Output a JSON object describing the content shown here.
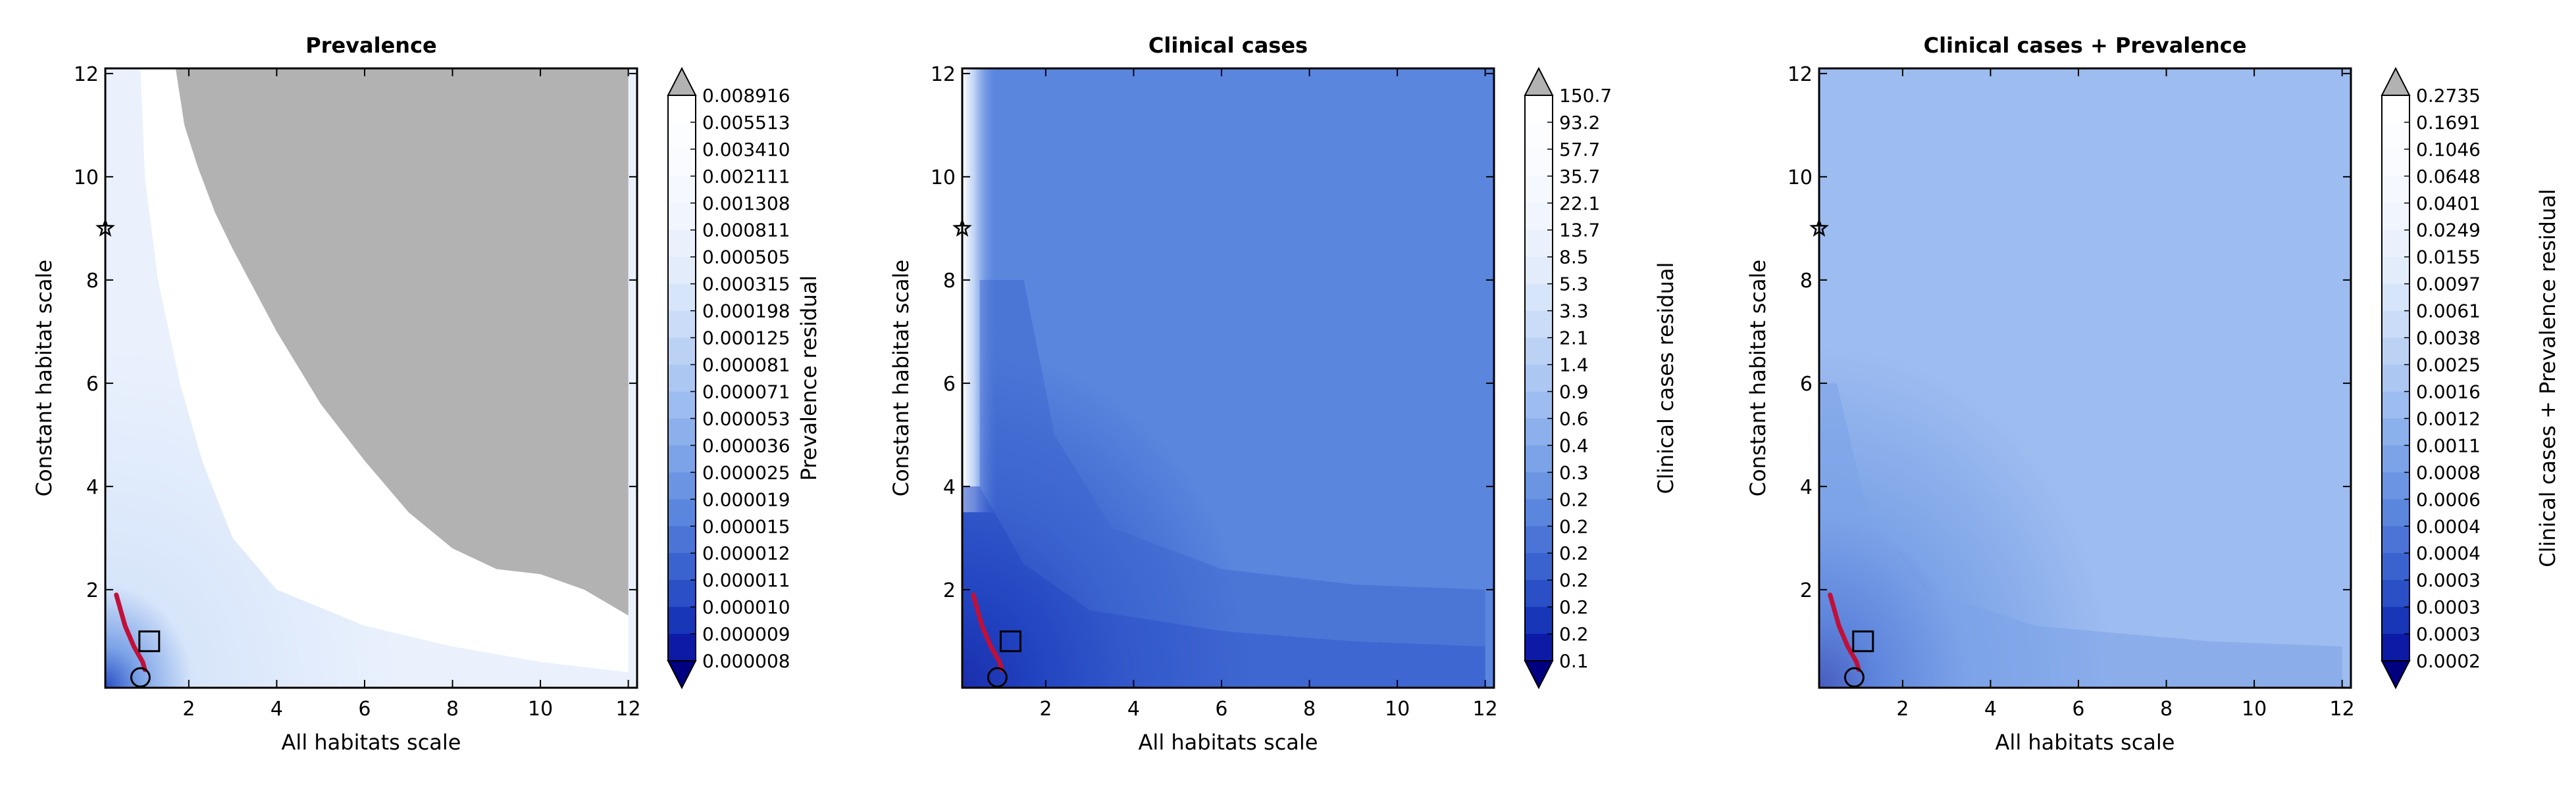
{
  "chart_data": [
    {
      "type": "heatmap",
      "title": "Prevalence",
      "xlabel": "All habitats scale",
      "ylabel": "Constant habitat scale",
      "xlim": [
        0.1,
        12.2
      ],
      "ylim": [
        0.1,
        12.1
      ],
      "xticks": [
        2,
        4,
        6,
        8,
        10,
        12
      ],
      "yticks": [
        2,
        4,
        6,
        8,
        10,
        12
      ],
      "colorbar": {
        "label": "Prevalence residual",
        "levels": [
          "0.008916",
          "0.005513",
          "0.003410",
          "0.002111",
          "0.001308",
          "0.000811",
          "0.000505",
          "0.000315",
          "0.000198",
          "0.000125",
          "0.000081",
          "0.000071",
          "0.000053",
          "0.000036",
          "0.000025",
          "0.000019",
          "0.000015",
          "0.000012",
          "0.000011",
          "0.000010",
          "0.000009",
          "0.000008"
        ]
      },
      "markers": [
        {
          "shape": "square",
          "x": 1.1,
          "y": 1.0
        },
        {
          "shape": "circle",
          "x": 0.9,
          "y": 0.3
        },
        {
          "shape": "star",
          "x": 0.1,
          "y": 9.0
        }
      ],
      "regions": [
        {
          "name": "undefined-gray",
          "color": "#b2b2b2",
          "outline": [
            [
              1.7,
              12.1
            ],
            [
              12.0,
              12.1
            ],
            [
              12.0,
              1.5
            ],
            [
              11.0,
              2.0
            ],
            [
              10.0,
              2.3
            ],
            [
              9.0,
              2.4
            ],
            [
              8.0,
              2.8
            ],
            [
              7.0,
              3.5
            ],
            [
              6.0,
              4.5
            ],
            [
              5.0,
              5.6
            ],
            [
              4.5,
              6.3
            ],
            [
              4.0,
              7.0
            ],
            [
              3.5,
              7.8
            ],
            [
              3.0,
              8.6
            ],
            [
              2.6,
              9.3
            ],
            [
              2.2,
              10.2
            ],
            [
              1.9,
              11.0
            ],
            [
              1.7,
              12.1
            ]
          ]
        },
        {
          "name": "white-band",
          "color": "#ffffff",
          "outline": [
            [
              0.9,
              12.1
            ],
            [
              1.7,
              12.1
            ],
            [
              1.9,
              11.0
            ],
            [
              2.2,
              10.2
            ],
            [
              2.6,
              9.3
            ],
            [
              3.0,
              8.6
            ],
            [
              3.5,
              7.8
            ],
            [
              4.0,
              7.0
            ],
            [
              4.5,
              6.3
            ],
            [
              5.0,
              5.6
            ],
            [
              6.0,
              4.5
            ],
            [
              7.0,
              3.5
            ],
            [
              8.0,
              2.8
            ],
            [
              9.0,
              2.4
            ],
            [
              10.0,
              2.3
            ],
            [
              11.0,
              2.0
            ],
            [
              12.0,
              1.5
            ],
            [
              12.0,
              0.4
            ],
            [
              10.0,
              0.6
            ],
            [
              8.0,
              0.9
            ],
            [
              6.0,
              1.3
            ],
            [
              4.0,
              2.0
            ],
            [
              3.0,
              3.0
            ],
            [
              2.3,
              4.5
            ],
            [
              1.8,
              6.0
            ],
            [
              1.3,
              8.0
            ],
            [
              1.0,
              10.0
            ],
            [
              0.9,
              12.1
            ]
          ]
        }
      ],
      "background_color": "#eaf1fd"
    },
    {
      "type": "heatmap",
      "title": "Clinical cases",
      "xlabel": "All habitats scale",
      "ylabel": "Constant habitat scale",
      "xlim": [
        0.1,
        12.2
      ],
      "ylim": [
        0.1,
        12.1
      ],
      "xticks": [
        2,
        4,
        6,
        8,
        10,
        12
      ],
      "yticks": [
        2,
        4,
        6,
        8,
        10,
        12
      ],
      "colorbar": {
        "label": "Clinical cases residual",
        "levels": [
          "150.7",
          "93.2",
          "57.7",
          "35.7",
          "22.1",
          "13.7",
          "8.5",
          "5.3",
          "3.3",
          "2.1",
          "1.4",
          "0.9",
          "0.6",
          "0.4",
          "0.3",
          "0.2",
          "0.2",
          "0.2",
          "0.2",
          "0.2",
          "0.2",
          "0.1"
        ]
      },
      "markers": [
        {
          "shape": "square",
          "x": 1.2,
          "y": 1.0
        },
        {
          "shape": "circle",
          "x": 0.9,
          "y": 0.3
        },
        {
          "shape": "star",
          "x": 0.1,
          "y": 9.0
        }
      ],
      "background_color": "#5a86dd"
    },
    {
      "type": "heatmap",
      "title": "Clinical cases + Prevalence",
      "xlabel": "All habitats scale",
      "ylabel": "Constant habitat scale",
      "xlim": [
        0.1,
        12.2
      ],
      "ylim": [
        0.1,
        12.1
      ],
      "xticks": [
        2,
        4,
        6,
        8,
        10,
        12
      ],
      "yticks": [
        2,
        4,
        6,
        8,
        10,
        12
      ],
      "colorbar": {
        "label": "Clinical cases + Prevalence residual",
        "levels": [
          "0.2735",
          "0.1691",
          "0.1046",
          "0.0648",
          "0.0401",
          "0.0249",
          "0.0155",
          "0.0097",
          "0.0061",
          "0.0038",
          "0.0025",
          "0.0016",
          "0.0012",
          "0.0011",
          "0.0008",
          "0.0006",
          "0.0004",
          "0.0004",
          "0.0003",
          "0.0003",
          "0.0003",
          "0.0002"
        ]
      },
      "markers": [
        {
          "shape": "square",
          "x": 1.1,
          "y": 1.0
        },
        {
          "shape": "circle",
          "x": 0.9,
          "y": 0.3
        },
        {
          "shape": "star",
          "x": 0.1,
          "y": 9.0
        }
      ],
      "background_color": "#9dbcf0"
    }
  ],
  "colormap": [
    "#08088e",
    "#0c1aa6",
    "#1836b8",
    "#2a4fc6",
    "#3b63cf",
    "#4b74d6",
    "#5a86dd",
    "#6b95e2",
    "#7ca3e7",
    "#8cb0eb",
    "#9dbcf0",
    "#adc7f3",
    "#bcd2f5",
    "#cadcf7",
    "#d7e5fa",
    "#e3ecfb",
    "#eaf1fd",
    "#f0f5fe",
    "#f5f8fe",
    "#f9fbff",
    "#fcfdff",
    "#ffffff"
  ],
  "over_color": "#b2b2b2",
  "under_color": "#000080"
}
